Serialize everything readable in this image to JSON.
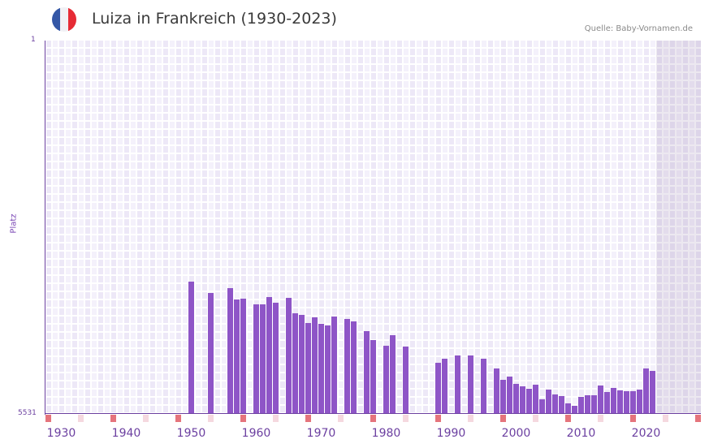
{
  "header": {
    "title": "Luiza in Frankreich (1930-2023)",
    "source": "Quelle: Baby-Vornamen.de",
    "flag_colors": [
      "#3457a6",
      "#f1f1f5",
      "#e62b35"
    ]
  },
  "colors": {
    "bar": "#8e55c7",
    "axis": "#6b3fa0",
    "grid_a": "#ede8f7",
    "grid_b": "#f4f1fb",
    "marker_decade": "#e5747c",
    "marker_half": "#f5d8df"
  },
  "chart_data": {
    "type": "bar",
    "title": "Luiza in Frankreich (1930-2023)",
    "xlabel": "",
    "ylabel": "Platz",
    "y_inverted": true,
    "ylim": [
      1,
      5531
    ],
    "y_ticks": [
      "1",
      "5531"
    ],
    "x_ticks": [
      "1930",
      "1940",
      "1950",
      "1960",
      "1970",
      "1980",
      "1990",
      "2000",
      "2010",
      "2020"
    ],
    "x_range": [
      1928,
      2028
    ],
    "shaded_from": 2022,
    "grid": true,
    "legend": null,
    "categories": [
      1950,
      1953,
      1956,
      1957,
      1958,
      1960,
      1961,
      1962,
      1963,
      1965,
      1966,
      1967,
      1968,
      1969,
      1970,
      1971,
      1972,
      1974,
      1975,
      1977,
      1978,
      1980,
      1981,
      1983,
      1988,
      1989,
      1991,
      1993,
      1995,
      1997,
      1998,
      1999,
      2000,
      2001,
      2002,
      2003,
      2004,
      2005,
      2006,
      2007,
      2008,
      2009,
      2010,
      2011,
      2012,
      2013,
      2014,
      2015,
      2016,
      2017,
      2018,
      2019,
      2020,
      2021
    ],
    "values": [
      3571,
      3740,
      3668,
      3836,
      3824,
      3908,
      3908,
      3800,
      3884,
      3812,
      4040,
      4064,
      4184,
      4100,
      4196,
      4220,
      4088,
      4124,
      4160,
      4304,
      4437,
      4521,
      4364,
      4533,
      4773,
      4713,
      4665,
      4665,
      4713,
      4857,
      5026,
      4978,
      5086,
      5122,
      5158,
      5098,
      5314,
      5170,
      5242,
      5266,
      5374,
      5410,
      5278,
      5254,
      5254,
      5110,
      5206,
      5146,
      5182,
      5194,
      5194,
      5170,
      4857,
      4893
    ]
  }
}
